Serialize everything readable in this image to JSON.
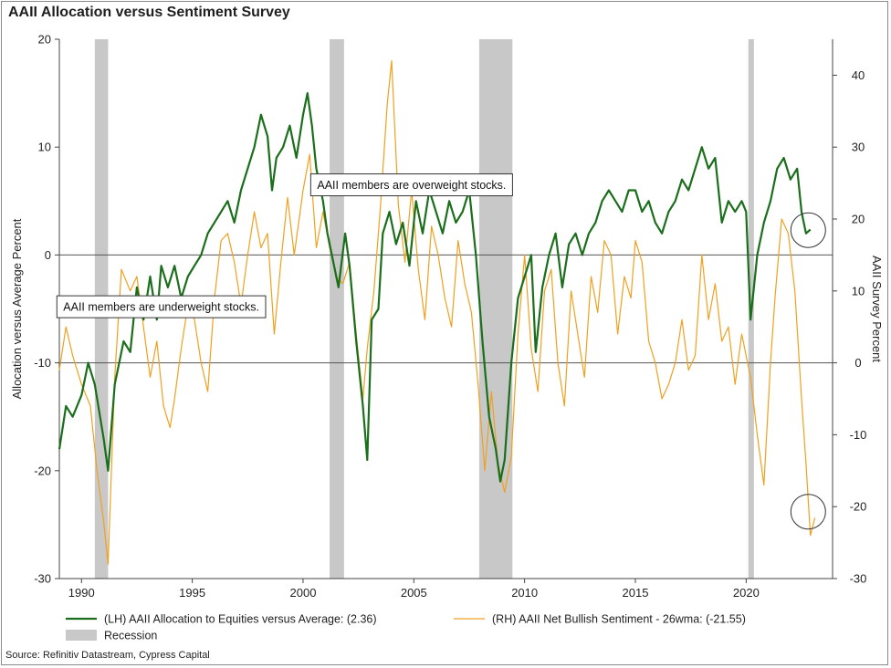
{
  "title": "AAII Allocation versus Sentiment Survey",
  "source": "Source: Refinitiv Datastream, Cypress Capital",
  "colors": {
    "green": "#1b6e1b",
    "orange": "#f0a020",
    "recession": "#c8c8c8",
    "grid": "#555555",
    "circle": "#333333"
  },
  "chart_data": {
    "type": "line",
    "xlim": [
      1989.0,
      2023.9
    ],
    "x_ticks": [
      1990,
      1995,
      2000,
      2005,
      2010,
      2015,
      2020
    ],
    "x_tick_labels": [
      "1990",
      "1995",
      "2000",
      "2005",
      "2010",
      "2015",
      "2020"
    ],
    "left_axis": {
      "label": "Allocation versus Average Percent",
      "ylim": [
        -30,
        20
      ],
      "ticks": [
        20,
        10,
        0,
        -10,
        -20,
        -30
      ],
      "tick_labels": [
        "20",
        "10",
        "0",
        "-10",
        "-20",
        "-30"
      ]
    },
    "right_axis": {
      "label": "AAII Survey Percent",
      "ylim": [
        -30,
        45
      ],
      "ticks": [
        40,
        30,
        20,
        10,
        0,
        -10,
        -20,
        -30
      ],
      "tick_labels": [
        "40",
        "30",
        "20",
        "10",
        "0",
        "-10",
        "-20",
        "-30"
      ]
    },
    "recessions": [
      [
        1990.6,
        1991.2
      ],
      [
        2001.2,
        2001.85
      ],
      [
        2007.95,
        2009.45
      ],
      [
        2020.1,
        2020.35
      ]
    ],
    "series": [
      {
        "name": "(LH) AAII Allocation to Equities versus Average: (2.36)",
        "axis": "left",
        "points": [
          [
            1989.0,
            -18
          ],
          [
            1989.3,
            -14
          ],
          [
            1989.6,
            -15
          ],
          [
            1990.0,
            -13
          ],
          [
            1990.3,
            -10
          ],
          [
            1990.6,
            -12
          ],
          [
            1991.0,
            -17
          ],
          [
            1991.2,
            -20
          ],
          [
            1991.5,
            -12
          ],
          [
            1991.9,
            -8
          ],
          [
            1992.2,
            -9
          ],
          [
            1992.5,
            -3
          ],
          [
            1992.8,
            -6
          ],
          [
            1993.1,
            -2
          ],
          [
            1993.4,
            -6
          ],
          [
            1993.6,
            -1
          ],
          [
            1993.9,
            -3
          ],
          [
            1994.2,
            -1
          ],
          [
            1994.5,
            -4
          ],
          [
            1994.8,
            -2
          ],
          [
            1995.1,
            -1
          ],
          [
            1995.4,
            0
          ],
          [
            1995.7,
            2
          ],
          [
            1996.0,
            3
          ],
          [
            1996.3,
            4
          ],
          [
            1996.6,
            5
          ],
          [
            1996.9,
            3
          ],
          [
            1997.2,
            6
          ],
          [
            1997.5,
            8
          ],
          [
            1997.8,
            10
          ],
          [
            1998.1,
            13
          ],
          [
            1998.4,
            11
          ],
          [
            1998.6,
            6
          ],
          [
            1998.8,
            9
          ],
          [
            1999.1,
            10
          ],
          [
            1999.4,
            12
          ],
          [
            1999.7,
            9
          ],
          [
            2000.0,
            13
          ],
          [
            2000.2,
            15
          ],
          [
            2000.4,
            12
          ],
          [
            2000.6,
            8
          ],
          [
            2000.9,
            5
          ],
          [
            2001.1,
            2
          ],
          [
            2001.3,
            0
          ],
          [
            2001.6,
            -3
          ],
          [
            2001.9,
            2
          ],
          [
            2002.1,
            -1
          ],
          [
            2002.4,
            -8
          ],
          [
            2002.7,
            -14
          ],
          [
            2002.9,
            -19
          ],
          [
            2003.1,
            -6
          ],
          [
            2003.4,
            -5
          ],
          [
            2003.6,
            2
          ],
          [
            2003.9,
            4
          ],
          [
            2004.2,
            1
          ],
          [
            2004.5,
            3
          ],
          [
            2004.8,
            -1
          ],
          [
            2005.1,
            5
          ],
          [
            2005.4,
            2
          ],
          [
            2005.7,
            6
          ],
          [
            2006.0,
            4
          ],
          [
            2006.3,
            2
          ],
          [
            2006.6,
            5
          ],
          [
            2006.9,
            3
          ],
          [
            2007.2,
            4
          ],
          [
            2007.5,
            6
          ],
          [
            2007.8,
            0
          ],
          [
            2008.1,
            -8
          ],
          [
            2008.4,
            -15
          ],
          [
            2008.7,
            -18
          ],
          [
            2008.9,
            -21
          ],
          [
            2009.1,
            -19
          ],
          [
            2009.4,
            -10
          ],
          [
            2009.7,
            -4
          ],
          [
            2010.0,
            -2
          ],
          [
            2010.3,
            0
          ],
          [
            2010.5,
            -9
          ],
          [
            2010.8,
            -3
          ],
          [
            2011.1,
            0
          ],
          [
            2011.4,
            2
          ],
          [
            2011.7,
            -3
          ],
          [
            2012.0,
            1
          ],
          [
            2012.3,
            2
          ],
          [
            2012.6,
            0
          ],
          [
            2012.9,
            2
          ],
          [
            2013.2,
            3
          ],
          [
            2013.5,
            5
          ],
          [
            2013.8,
            6
          ],
          [
            2014.1,
            5
          ],
          [
            2014.4,
            4
          ],
          [
            2014.7,
            6
          ],
          [
            2015.0,
            6
          ],
          [
            2015.3,
            4
          ],
          [
            2015.6,
            5
          ],
          [
            2015.9,
            3
          ],
          [
            2016.2,
            2
          ],
          [
            2016.5,
            4
          ],
          [
            2016.8,
            5
          ],
          [
            2017.1,
            7
          ],
          [
            2017.4,
            6
          ],
          [
            2017.7,
            8
          ],
          [
            2018.0,
            10
          ],
          [
            2018.3,
            8
          ],
          [
            2018.6,
            9
          ],
          [
            2018.9,
            3
          ],
          [
            2019.2,
            5
          ],
          [
            2019.5,
            4
          ],
          [
            2019.8,
            5
          ],
          [
            2020.0,
            4
          ],
          [
            2020.2,
            -6
          ],
          [
            2020.5,
            0
          ],
          [
            2020.8,
            3
          ],
          [
            2021.1,
            5
          ],
          [
            2021.4,
            8
          ],
          [
            2021.7,
            9
          ],
          [
            2022.0,
            7
          ],
          [
            2022.3,
            8
          ],
          [
            2022.5,
            4
          ],
          [
            2022.7,
            2
          ],
          [
            2022.9,
            2.36
          ]
        ]
      },
      {
        "name": "(RH) AAII Net Bullish Sentiment - 26wma: (-21.55)",
        "axis": "right",
        "points": [
          [
            1989.0,
            -1
          ],
          [
            1989.3,
            5
          ],
          [
            1989.6,
            1
          ],
          [
            1990.0,
            -3
          ],
          [
            1990.4,
            -6
          ],
          [
            1990.7,
            -15
          ],
          [
            1991.0,
            -22
          ],
          [
            1991.2,
            -28
          ],
          [
            1991.5,
            -2
          ],
          [
            1991.8,
            13
          ],
          [
            1992.2,
            10
          ],
          [
            1992.5,
            12
          ],
          [
            1992.8,
            5
          ],
          [
            1993.1,
            -2
          ],
          [
            1993.4,
            3
          ],
          [
            1993.7,
            -6
          ],
          [
            1994.0,
            -9
          ],
          [
            1994.2,
            -5
          ],
          [
            1994.5,
            2
          ],
          [
            1994.8,
            8
          ],
          [
            1995.1,
            6
          ],
          [
            1995.4,
            0
          ],
          [
            1995.7,
            -4
          ],
          [
            1996.0,
            9
          ],
          [
            1996.3,
            17
          ],
          [
            1996.6,
            18
          ],
          [
            1996.9,
            14
          ],
          [
            1997.2,
            8
          ],
          [
            1997.5,
            15
          ],
          [
            1997.8,
            21
          ],
          [
            1998.1,
            16
          ],
          [
            1998.4,
            18
          ],
          [
            1998.7,
            4
          ],
          [
            1999.0,
            14
          ],
          [
            1999.3,
            23
          ],
          [
            1999.6,
            15
          ],
          [
            2000.0,
            24
          ],
          [
            2000.3,
            29
          ],
          [
            2000.6,
            16
          ],
          [
            2000.9,
            21
          ],
          [
            2001.2,
            16
          ],
          [
            2001.5,
            12
          ],
          [
            2001.8,
            11
          ],
          [
            2002.1,
            14
          ],
          [
            2002.4,
            4
          ],
          [
            2002.7,
            -5
          ],
          [
            2002.9,
            2
          ],
          [
            2003.2,
            10
          ],
          [
            2003.5,
            22
          ],
          [
            2003.8,
            36
          ],
          [
            2004.0,
            42
          ],
          [
            2004.3,
            22
          ],
          [
            2004.6,
            14
          ],
          [
            2004.9,
            24
          ],
          [
            2005.2,
            13
          ],
          [
            2005.5,
            6
          ],
          [
            2005.8,
            19
          ],
          [
            2006.1,
            15
          ],
          [
            2006.4,
            9
          ],
          [
            2006.7,
            5
          ],
          [
            2007.0,
            17
          ],
          [
            2007.3,
            11
          ],
          [
            2007.6,
            7
          ],
          [
            2007.9,
            -3
          ],
          [
            2008.2,
            -15
          ],
          [
            2008.5,
            -4
          ],
          [
            2008.8,
            -14
          ],
          [
            2009.1,
            -18
          ],
          [
            2009.4,
            -13
          ],
          [
            2009.7,
            4
          ],
          [
            2010.0,
            15
          ],
          [
            2010.3,
            2
          ],
          [
            2010.6,
            -4
          ],
          [
            2010.9,
            10
          ],
          [
            2011.2,
            13
          ],
          [
            2011.5,
            0
          ],
          [
            2011.8,
            -6
          ],
          [
            2012.1,
            10
          ],
          [
            2012.4,
            4
          ],
          [
            2012.7,
            -2
          ],
          [
            2013.0,
            12
          ],
          [
            2013.3,
            7
          ],
          [
            2013.6,
            17
          ],
          [
            2013.9,
            15
          ],
          [
            2014.2,
            4
          ],
          [
            2014.5,
            12
          ],
          [
            2014.8,
            9
          ],
          [
            2015.0,
            17
          ],
          [
            2015.3,
            14
          ],
          [
            2015.6,
            3
          ],
          [
            2015.9,
            0
          ],
          [
            2016.2,
            -5
          ],
          [
            2016.5,
            -3
          ],
          [
            2016.8,
            0
          ],
          [
            2017.1,
            6
          ],
          [
            2017.4,
            -1
          ],
          [
            2017.7,
            1
          ],
          [
            2018.0,
            15
          ],
          [
            2018.3,
            6
          ],
          [
            2018.6,
            11
          ],
          [
            2018.9,
            3
          ],
          [
            2019.2,
            5
          ],
          [
            2019.5,
            -3
          ],
          [
            2019.8,
            4
          ],
          [
            2020.0,
            1
          ],
          [
            2020.2,
            -2
          ],
          [
            2020.5,
            -10
          ],
          [
            2020.8,
            -17
          ],
          [
            2021.1,
            0
          ],
          [
            2021.3,
            9
          ],
          [
            2021.6,
            20
          ],
          [
            2021.9,
            18
          ],
          [
            2022.2,
            10
          ],
          [
            2022.5,
            -5
          ],
          [
            2022.7,
            -14
          ],
          [
            2022.9,
            -24
          ],
          [
            2023.1,
            -21.55
          ]
        ]
      }
    ],
    "annotations": [
      {
        "text": "AAII members are overweight stocks.",
        "x": 2004.9,
        "y": 6.5
      },
      {
        "text": "AAII members are underweight stocks.",
        "x": 1993.6,
        "y": -4.8
      }
    ],
    "highlight_circles": [
      {
        "x": 2022.8,
        "y": 2.3
      },
      {
        "x": 2022.8,
        "y": -23.8
      }
    ],
    "legend": [
      {
        "label": "(LH) AAII Allocation to Equities versus Average: (2.36)",
        "kind": "line",
        "color": "#1b6e1b"
      },
      {
        "label": "Recession",
        "kind": "box",
        "color": "#c8c8c8"
      },
      {
        "label": "(RH) AAII Net Bullish Sentiment - 26wma: (-21.55)",
        "kind": "line",
        "color": "#f0a020"
      }
    ]
  }
}
